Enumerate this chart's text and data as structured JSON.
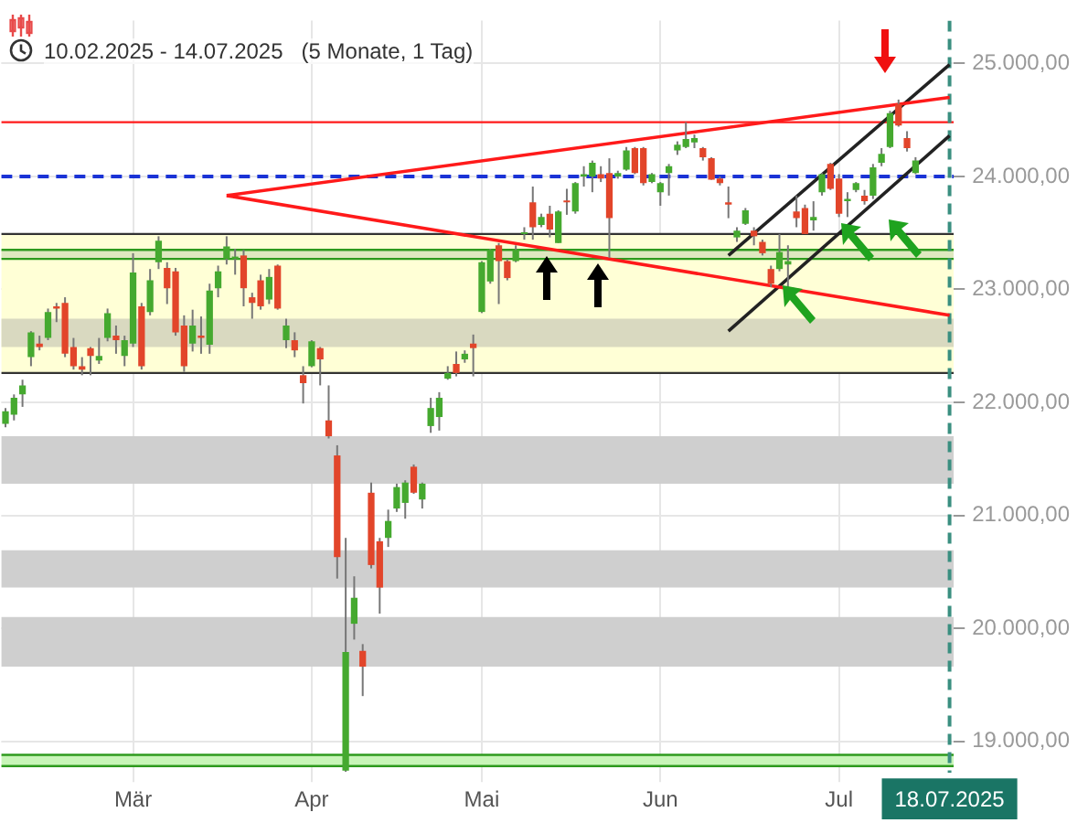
{
  "chart_data": {
    "type": "candlestick",
    "subtitle": "10.02.2025 - 14.07.2025   (5 Monate, 1 Tag)",
    "categories": [
      null,
      null,
      null,
      null,
      null,
      null,
      null,
      null,
      null,
      null,
      null,
      null,
      null,
      null,
      null,
      "Mär",
      null,
      null,
      null,
      null,
      null,
      null,
      null,
      null,
      null,
      null,
      null,
      null,
      null,
      null,
      null,
      null,
      null,
      null,
      null,
      null,
      "Apr",
      null,
      null,
      null,
      null,
      null,
      null,
      null,
      null,
      null,
      null,
      null,
      null,
      null,
      null,
      null,
      null,
      null,
      null,
      null,
      "Mai",
      null,
      null,
      null,
      null,
      null,
      null,
      null,
      null,
      null,
      null,
      null,
      null,
      null,
      null,
      null,
      null,
      null,
      null,
      null,
      null,
      "Jun",
      null,
      null,
      null,
      null,
      null,
      null,
      null,
      null,
      null,
      null,
      null,
      null,
      null,
      null,
      null,
      null,
      null,
      null,
      null,
      null,
      "Jul",
      null,
      null,
      null,
      null,
      null,
      null,
      null,
      null,
      null,
      null,
      null,
      null,
      "18.07.2025"
    ],
    "ohlc": [
      [
        21810,
        21950,
        21780,
        21920
      ],
      [
        21890,
        22070,
        21840,
        22040
      ],
      [
        22070,
        22200,
        21960,
        22150
      ],
      [
        22400,
        22630,
        22320,
        22620
      ],
      [
        22520,
        22590,
        22460,
        22490
      ],
      [
        22570,
        22830,
        22550,
        22800
      ],
      [
        22850,
        22880,
        22710,
        22830
      ],
      [
        22880,
        22930,
        22400,
        22430
      ],
      [
        22490,
        22570,
        22290,
        22320
      ],
      [
        22320,
        22400,
        22240,
        22290
      ],
      [
        22480,
        22490,
        22240,
        22410
      ],
      [
        22370,
        22570,
        22340,
        22410
      ],
      [
        22570,
        22830,
        22540,
        22790
      ],
      [
        22590,
        22680,
        22430,
        22550
      ],
      [
        22410,
        22590,
        22320,
        22550
      ],
      [
        22520,
        23320,
        22490,
        23150
      ],
      [
        22850,
        22880,
        22290,
        22320
      ],
      [
        22800,
        23180,
        22770,
        23080
      ],
      [
        23240,
        23470,
        23180,
        23430
      ],
      [
        23190,
        23240,
        22870,
        23010
      ],
      [
        23160,
        23190,
        22590,
        22620
      ],
      [
        22680,
        22770,
        22270,
        22320
      ],
      [
        22520,
        22820,
        22450,
        22680
      ],
      [
        22590,
        22760,
        22430,
        22570
      ],
      [
        22510,
        23050,
        22430,
        22990
      ],
      [
        23010,
        23210,
        22930,
        23160
      ],
      [
        23270,
        23470,
        23220,
        23380
      ],
      [
        23270,
        23360,
        23130,
        23290
      ],
      [
        23300,
        23350,
        22850,
        23010
      ],
      [
        22930,
        22970,
        22740,
        22880
      ],
      [
        23080,
        23130,
        22820,
        22850
      ],
      [
        22910,
        23180,
        22870,
        23110
      ],
      [
        23210,
        23220,
        22820,
        22830
      ],
      [
        22550,
        22740,
        22480,
        22680
      ],
      [
        22550,
        22620,
        22400,
        22460
      ],
      [
        22240,
        22320,
        21990,
        22170
      ],
      [
        22320,
        22550,
        22310,
        22540
      ],
      [
        22480,
        22490,
        22150,
        22380
      ],
      [
        21840,
        22150,
        21680,
        21700
      ],
      [
        21530,
        21620,
        20440,
        20630
      ],
      [
        18740,
        20800,
        18730,
        19790
      ],
      [
        20040,
        20460,
        19900,
        20270
      ],
      [
        19800,
        19860,
        19400,
        19660
      ],
      [
        21200,
        21290,
        20530,
        20560
      ],
      [
        20770,
        20800,
        20130,
        20360
      ],
      [
        20800,
        21050,
        20720,
        20950
      ],
      [
        21060,
        21280,
        21030,
        21250
      ],
      [
        21110,
        21310,
        20970,
        21290
      ],
      [
        21430,
        21450,
        21190,
        21200
      ],
      [
        21140,
        21290,
        21060,
        21280
      ],
      [
        21790,
        22040,
        21730,
        21950
      ],
      [
        21870,
        22090,
        21750,
        22040
      ],
      [
        22210,
        22320,
        22200,
        22260
      ],
      [
        22340,
        22450,
        22230,
        22260
      ],
      [
        22380,
        22460,
        22350,
        22430
      ],
      [
        22520,
        22600,
        22230,
        22480
      ],
      [
        22800,
        23250,
        22790,
        23240
      ],
      [
        23070,
        23360,
        23050,
        23350
      ],
      [
        23390,
        23410,
        22870,
        23250
      ],
      [
        23250,
        23270,
        23080,
        23100
      ],
      [
        23250,
        23390,
        23240,
        23350
      ],
      [
        23490,
        23550,
        23440,
        23500
      ],
      [
        23770,
        23910,
        23440,
        23550
      ],
      [
        23570,
        23670,
        23550,
        23640
      ],
      [
        23670,
        23740,
        23460,
        23530
      ],
      [
        23410,
        23700,
        23410,
        23690
      ],
      [
        23780,
        23890,
        23660,
        23770
      ],
      [
        23690,
        23950,
        23670,
        23940
      ],
      [
        24000,
        24090,
        23910,
        24020
      ],
      [
        24000,
        24140,
        23860,
        24120
      ],
      [
        24020,
        24090,
        23950,
        23980
      ],
      [
        24030,
        24160,
        23280,
        23630
      ],
      [
        24000,
        24050,
        23980,
        24030
      ],
      [
        24060,
        24260,
        24050,
        24230
      ],
      [
        24250,
        24260,
        24020,
        24030
      ],
      [
        24250,
        24260,
        23920,
        23940
      ],
      [
        23950,
        24030,
        23940,
        24020
      ],
      [
        23860,
        23950,
        23740,
        23940
      ],
      [
        24030,
        24110,
        23830,
        24090
      ],
      [
        24230,
        24310,
        24190,
        24280
      ],
      [
        24260,
        24480,
        24250,
        24330
      ],
      [
        24300,
        24370,
        24250,
        24340
      ],
      [
        24250,
        24260,
        24140,
        24170
      ],
      [
        24160,
        24170,
        23970,
        23970
      ],
      [
        23980,
        24000,
        23920,
        23940
      ],
      [
        23770,
        23910,
        23630,
        23750
      ],
      [
        23460,
        23550,
        23420,
        23520
      ],
      [
        23580,
        23720,
        23570,
        23700
      ],
      [
        23520,
        23550,
        23390,
        23470
      ],
      [
        23420,
        23440,
        23300,
        23320
      ],
      [
        23180,
        23210,
        23020,
        23050
      ],
      [
        23180,
        23490,
        23160,
        23330
      ],
      [
        23220,
        23390,
        23020,
        23250
      ],
      [
        23690,
        23830,
        23550,
        23630
      ],
      [
        23720,
        23750,
        23490,
        23490
      ],
      [
        23610,
        23780,
        23520,
        23640
      ],
      [
        23860,
        24030,
        23830,
        24020
      ],
      [
        24110,
        24120,
        23880,
        23890
      ],
      [
        23980,
        24020,
        23640,
        23670
      ],
      [
        23780,
        23860,
        23640,
        23800
      ],
      [
        23880,
        23950,
        23860,
        23940
      ],
      [
        23830,
        23880,
        23750,
        23780
      ],
      [
        23830,
        24110,
        23800,
        24080
      ],
      [
        24120,
        24250,
        24090,
        24200
      ],
      [
        24260,
        24580,
        24250,
        24560
      ],
      [
        24640,
        24680,
        24440,
        24450
      ],
      [
        24340,
        24400,
        24220,
        24250
      ],
      [
        24030,
        24170,
        24020,
        24140
      ],
      null,
      null,
      null,
      null
    ],
    "colors": [
      "#45a92f",
      "#45a92f",
      "#45a92f",
      "#45a92f",
      "#e2452a",
      "#45a92f",
      "#e2452a",
      "#e2452a",
      "#e2452a",
      "#e2452a",
      "#e2452a",
      "#45a92f",
      "#45a92f",
      "#e2452a",
      "#45a92f",
      "#45a92f",
      "#e2452a",
      "#45a92f",
      "#45a92f",
      "#e2452a",
      "#e2452a",
      "#e2452a",
      "#45a92f",
      "#e2452a",
      "#45a92f",
      "#45a92f",
      "#45a92f",
      "#45a92f",
      "#e2452a",
      "#e2452a",
      "#e2452a",
      "#45a92f",
      "#e2452a",
      "#45a92f",
      "#e2452a",
      "#e2452a",
      "#45a92f",
      "#e2452a",
      "#e2452a",
      "#e2452a",
      "#45a92f",
      "#45a92f",
      "#e2452a",
      "#e2452a",
      "#e2452a",
      "#45a92f",
      "#45a92f",
      "#45a92f",
      "#e2452a",
      "#45a92f",
      "#45a92f",
      "#45a92f",
      "#45a92f",
      "#e2452a",
      "#45a92f",
      "#e2452a",
      "#45a92f",
      "#45a92f",
      "#e2452a",
      "#e2452a",
      "#45a92f",
      "#45a92f",
      "#e2452a",
      "#45a92f",
      "#e2452a",
      "#45a92f",
      "#e2452a",
      "#45a92f",
      "#45a92f",
      "#45a92f",
      "#e2452a",
      "#e2452a",
      "#45a92f",
      "#45a92f",
      "#e2452a",
      "#e2452a",
      "#45a92f",
      "#45a92f",
      "#45a92f",
      "#45a92f",
      "#45a92f",
      "#45a92f",
      "#e2452a",
      "#e2452a",
      "#e2452a",
      "#e2452a",
      "#45a92f",
      "#45a92f",
      "#e2452a",
      "#e2452a",
      "#e2452a",
      "#45a92f",
      "#45a92f",
      "#e2452a",
      "#e2452a",
      "#45a92f",
      "#45a92f",
      "#e2452a",
      "#e2452a",
      "#45a92f",
      "#45a92f",
      "#e2452a",
      "#45a92f",
      "#45a92f",
      "#45a92f",
      "#e2452a",
      "#e2452a",
      "#45a92f",
      null,
      null,
      null,
      null
    ],
    "series": [
      {
        "type": "line",
        "color": "#ff1a1a",
        "values": [
          null,
          null,
          null,
          null,
          null,
          null,
          null,
          null,
          null,
          null,
          null,
          null,
          null,
          null,
          null,
          null,
          null,
          null,
          null,
          null,
          null,
          null,
          null,
          null,
          null,
          null,
          23830,
          null,
          null,
          null,
          null,
          null,
          null,
          null,
          null,
          null,
          null,
          null,
          null,
          null,
          null,
          null,
          null,
          null,
          null,
          null,
          null,
          null,
          null,
          null,
          null,
          null,
          null,
          null,
          null,
          null,
          null,
          null,
          null,
          null,
          null,
          null,
          null,
          null,
          null,
          null,
          null,
          null,
          null,
          null,
          null,
          null,
          null,
          null,
          null,
          null,
          null,
          null,
          null,
          null,
          null,
          null,
          null,
          null,
          null,
          null,
          null,
          null,
          null,
          null,
          null,
          null,
          null,
          null,
          null,
          null,
          null,
          null,
          null,
          null,
          null,
          null,
          null,
          null,
          null,
          null,
          null,
          null,
          null,
          null,
          null,
          24700
        ]
      },
      {
        "type": "line",
        "color": "#ff1a1a",
        "values": [
          null,
          null,
          null,
          null,
          null,
          null,
          null,
          null,
          null,
          null,
          null,
          null,
          null,
          null,
          null,
          null,
          null,
          null,
          null,
          null,
          null,
          null,
          null,
          null,
          null,
          null,
          23830,
          null,
          null,
          null,
          null,
          null,
          null,
          null,
          null,
          null,
          null,
          null,
          null,
          null,
          null,
          null,
          null,
          null,
          null,
          null,
          null,
          null,
          null,
          null,
          null,
          null,
          null,
          null,
          null,
          null,
          null,
          null,
          null,
          null,
          null,
          null,
          null,
          null,
          null,
          null,
          null,
          null,
          null,
          null,
          null,
          null,
          null,
          null,
          null,
          null,
          null,
          null,
          null,
          null,
          null,
          null,
          null,
          null,
          null,
          null,
          null,
          null,
          null,
          null,
          null,
          null,
          null,
          null,
          null,
          null,
          null,
          null,
          null,
          null,
          null,
          null,
          null,
          null,
          null,
          null,
          null,
          null,
          null,
          null,
          null,
          22770
        ]
      },
      {
        "type": "line",
        "color": "#222222",
        "values": [
          null,
          null,
          null,
          null,
          null,
          null,
          null,
          null,
          null,
          null,
          null,
          null,
          null,
          null,
          null,
          null,
          null,
          null,
          null,
          null,
          null,
          null,
          null,
          null,
          null,
          null,
          null,
          null,
          null,
          null,
          null,
          null,
          null,
          null,
          null,
          null,
          null,
          null,
          null,
          null,
          null,
          null,
          null,
          null,
          null,
          null,
          null,
          null,
          null,
          null,
          null,
          null,
          null,
          null,
          null,
          null,
          null,
          null,
          null,
          null,
          null,
          null,
          null,
          null,
          null,
          null,
          null,
          null,
          null,
          null,
          null,
          null,
          null,
          null,
          null,
          null,
          null,
          null,
          null,
          null,
          null,
          null,
          null,
          null,
          null,
          22630,
          null,
          null,
          null,
          null,
          null,
          null,
          null,
          null,
          null,
          null,
          null,
          null,
          null,
          null,
          null,
          null,
          null,
          null,
          null,
          null,
          null,
          null,
          null,
          null,
          null,
          24360
        ]
      },
      {
        "type": "line",
        "color": "#222222",
        "values": [
          null,
          null,
          null,
          null,
          null,
          null,
          null,
          null,
          null,
          null,
          null,
          null,
          null,
          null,
          null,
          null,
          null,
          null,
          null,
          null,
          null,
          null,
          null,
          null,
          null,
          null,
          null,
          null,
          null,
          null,
          null,
          null,
          null,
          null,
          null,
          null,
          null,
          null,
          null,
          null,
          null,
          null,
          null,
          null,
          null,
          null,
          null,
          null,
          null,
          null,
          null,
          null,
          null,
          null,
          null,
          null,
          null,
          null,
          null,
          null,
          null,
          null,
          null,
          null,
          null,
          null,
          null,
          null,
          null,
          null,
          null,
          null,
          null,
          null,
          null,
          null,
          null,
          null,
          null,
          null,
          null,
          null,
          null,
          null,
          null,
          23300,
          null,
          null,
          null,
          null,
          null,
          null,
          null,
          null,
          null,
          null,
          null,
          null,
          null,
          null,
          null,
          null,
          null,
          null,
          null,
          null,
          null,
          null,
          null,
          null,
          null,
          24990
        ]
      }
    ],
    "ylim": [
      18720,
      25380
    ],
    "yticks": [
      {
        "value": 19000,
        "label": "19.000,00"
      },
      {
        "value": 20000,
        "label": "20.000,00"
      },
      {
        "value": 21000,
        "label": "21.000,00"
      },
      {
        "value": 22000,
        "label": "22.000,00"
      },
      {
        "value": 23000,
        "label": "23.000,00"
      },
      {
        "value": 24000,
        "label": "24.000,00"
      },
      {
        "value": 25000,
        "label": "25.000,00"
      }
    ],
    "grid": true,
    "bands": [
      {
        "axis": "y",
        "from": 22260,
        "to": 23490,
        "color": "#ffffd6"
      },
      {
        "axis": "y",
        "from": 22490,
        "to": 22740,
        "color": "#d9d9c0"
      },
      {
        "axis": "y",
        "from": 21280,
        "to": 21700,
        "color": "#cfcfcf"
      },
      {
        "axis": "y",
        "from": 20360,
        "to": 20690,
        "color": "#cfcfcf"
      },
      {
        "axis": "y",
        "from": 19660,
        "to": 20100,
        "color": "#cfcfcf"
      },
      {
        "axis": "y",
        "from": 18780,
        "to": 18880,
        "color": "#c8f5b8"
      },
      {
        "axis": "y",
        "from": 23270,
        "to": 23350,
        "color": "#dfe8c0"
      }
    ],
    "ref_lines": [
      {
        "axis": "y",
        "value": 24000,
        "color": "#1a33d6",
        "line_style": "dashed"
      },
      {
        "axis": "y",
        "value": 22260,
        "color": "#333333"
      },
      {
        "axis": "y",
        "value": 23490,
        "color": "#333333"
      },
      {
        "axis": "y",
        "value": 18780,
        "color": "#2e9a1e"
      },
      {
        "axis": "y",
        "value": 18880,
        "color": "#2e9a1e"
      },
      {
        "axis": "y",
        "value": 23270,
        "color": "#2e9a1e"
      },
      {
        "axis": "y",
        "value": 23350,
        "color": "#2e9a1e"
      },
      {
        "axis": "y",
        "value": 24480,
        "color": "#ff1a1a"
      },
      {
        "axis": "x",
        "value": "18.07.2025",
        "color": "#3a8f80",
        "line_style": "dashed"
      }
    ]
  }
}
